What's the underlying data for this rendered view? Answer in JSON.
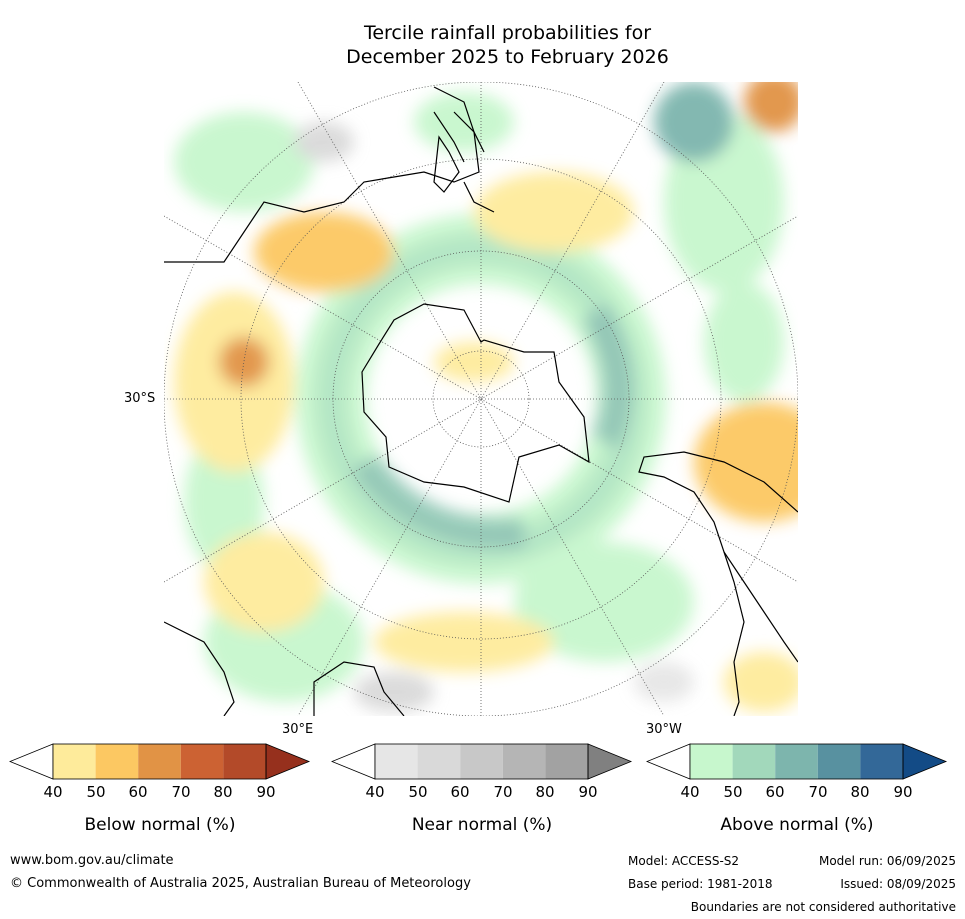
{
  "title_line1": "Tercile rainfall probabilities for",
  "title_line2": "December 2025 to February 2026",
  "map_labels": {
    "lat": "30°S",
    "lon_east": "30°E",
    "lon_west": "30°W"
  },
  "colorbars": [
    {
      "title": "Below normal (%)",
      "ticks": [
        "40",
        "50",
        "60",
        "70",
        "80",
        "90"
      ],
      "colors": [
        "#ffffff",
        "#feeb9b",
        "#fcc862",
        "#e19345",
        "#cc6233",
        "#b34a29",
        "#96301d"
      ]
    },
    {
      "title": "Near normal (%)",
      "ticks": [
        "40",
        "50",
        "60",
        "70",
        "80",
        "90"
      ],
      "colors": [
        "#ffffff",
        "#e6e6e6",
        "#d9d9d9",
        "#c8c8c8",
        "#b5b5b5",
        "#a2a2a2",
        "#808080"
      ]
    },
    {
      "title": "Above normal (%)",
      "ticks": [
        "40",
        "50",
        "60",
        "70",
        "80",
        "90"
      ],
      "colors": [
        "#ffffff",
        "#c7f7cd",
        "#a2d8bb",
        "#7db5ad",
        "#5891a0",
        "#336898",
        "#134b86"
      ]
    }
  ],
  "footer": {
    "url": "www.bom.gov.au/climate",
    "copyright": "© Commonwealth of Australia 2025, Australian Bureau of Meteorology",
    "model": "Model: ACCESS-S2",
    "base_period": "Base period: 1981-2018",
    "model_run": "Model run: 06/09/2025",
    "issued": "Issued: 08/09/2025",
    "disclaimer": "Boundaries are not considered authoritative"
  }
}
